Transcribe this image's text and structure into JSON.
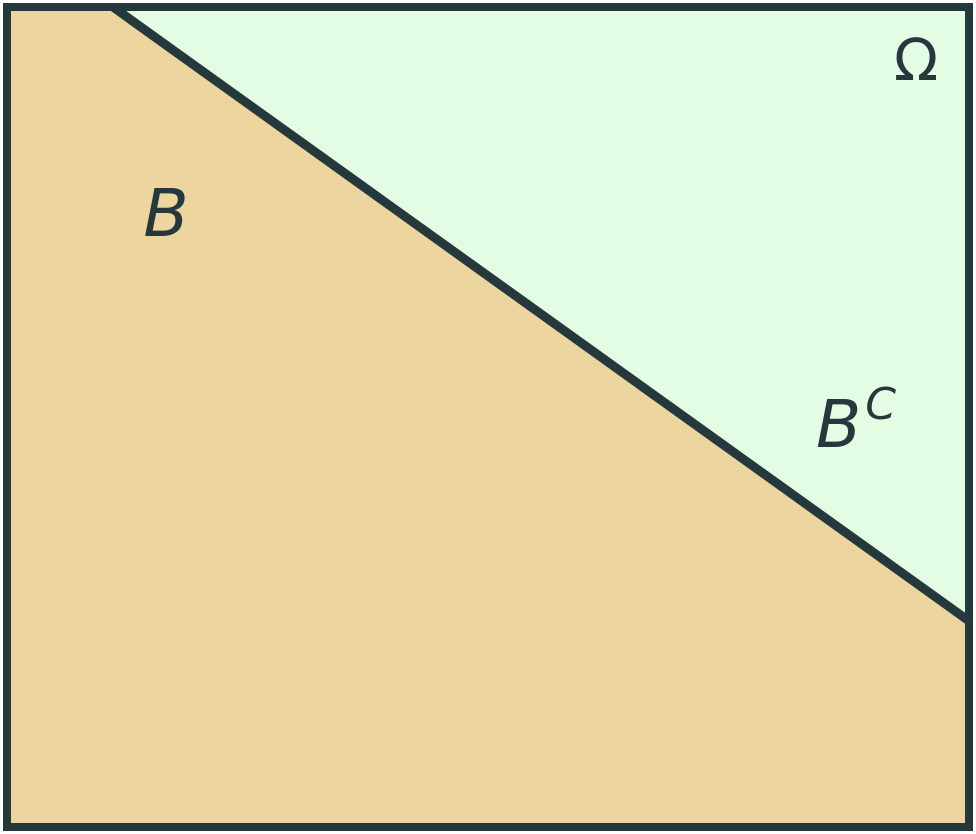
{
  "diagram": {
    "universe_label": "Ω",
    "set_label": "B",
    "complement_base": "B",
    "complement_sup": "C",
    "colors": {
      "set_fill": "#ECD59F",
      "complement_fill": "#E3FCE4",
      "stroke": "#25383C"
    }
  }
}
